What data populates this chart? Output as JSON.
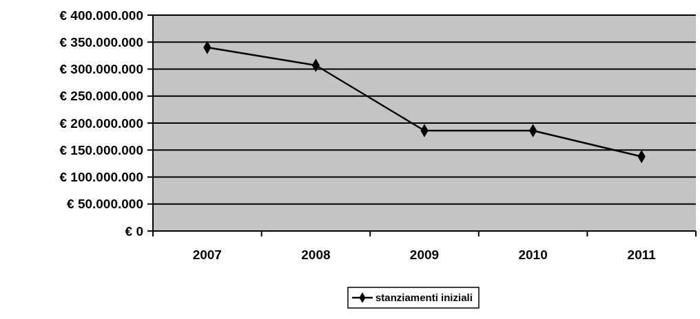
{
  "chart_data": {
    "type": "line",
    "categories": [
      "2007",
      "2008",
      "2009",
      "2010",
      "2011"
    ],
    "series": [
      {
        "name": "stanziamenti iniziali",
        "color": "#000000",
        "values": [
          340000000,
          307000000,
          186000000,
          186000000,
          138000000
        ]
      }
    ],
    "ylim": [
      0,
      400000000
    ],
    "yticks": [
      {
        "value": 0,
        "label": "€ 0"
      },
      {
        "value": 50000000,
        "label": "€ 50.000.000"
      },
      {
        "value": 100000000,
        "label": "€ 100.000.000"
      },
      {
        "value": 150000000,
        "label": "€ 150.000.000"
      },
      {
        "value": 200000000,
        "label": "€ 200.000.000"
      },
      {
        "value": 250000000,
        "label": "€ 250.000.000"
      },
      {
        "value": 300000000,
        "label": "€ 300.000.000"
      },
      {
        "value": 350000000,
        "label": "€ 350.000.000"
      },
      {
        "value": 400000000,
        "label": "€ 400.000.000"
      }
    ],
    "grid": "y",
    "legend": "bottom",
    "marker": "diamond",
    "line_style": "solid"
  }
}
